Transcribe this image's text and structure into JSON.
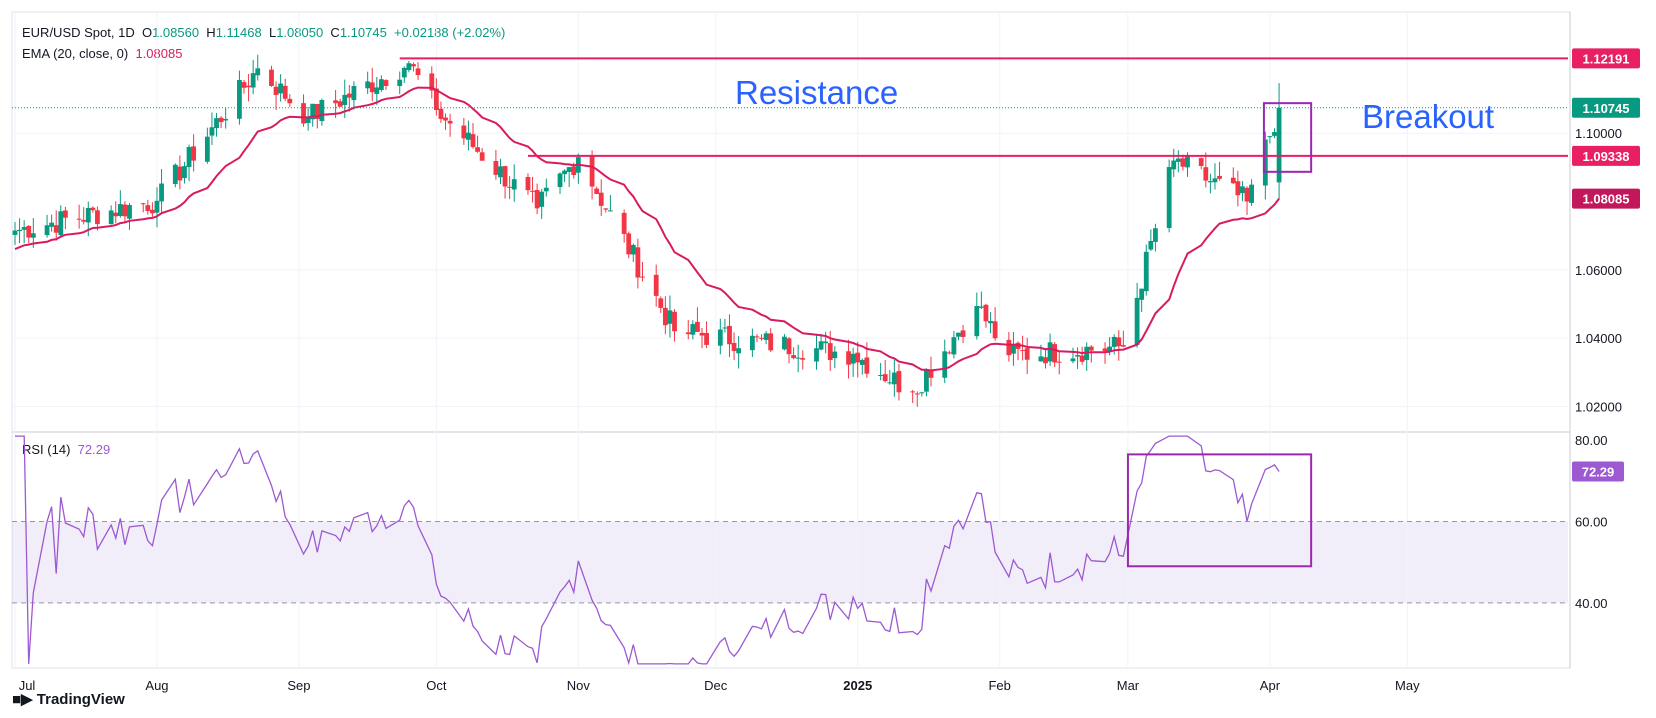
{
  "header": {
    "symbol": "EUR/USD Spot, 1D",
    "open_label": "O",
    "open": "1.08560",
    "high_label": "H",
    "high": "1.11468",
    "low_label": "L",
    "low": "1.08050",
    "close_label": "C",
    "close": "1.10745",
    "change": "+0.02188 (+2.02%)",
    "ema_label": "EMA (20, close, 0)",
    "ema_value": "1.08085",
    "rsi_label": "RSI (14)",
    "rsi_value": "72.29"
  },
  "branding": {
    "logo_text": "TradingView"
  },
  "colors": {
    "up": "#089981",
    "down": "#f23645",
    "ema": "#d81b60",
    "level_line": "#e91e63",
    "rsi": "#9c59d1",
    "box": "#9c27b0",
    "annotation": "#2962ff"
  },
  "chart_data": [
    {
      "type": "candlestick",
      "title": "EUR/USD Spot, 1D",
      "x_ticks": [
        "Jul",
        "Aug",
        "Sep",
        "Oct",
        "Nov",
        "Dec",
        "2025",
        "Feb",
        "Mar",
        "Apr",
        "May"
      ],
      "y_ticks": [
        1.02,
        1.04,
        1.06,
        1.1
      ],
      "ylim": [
        1.0125,
        1.1355
      ],
      "price_labels": [
        {
          "label": "1.12191",
          "value": 1.12191,
          "color": "#e91e63"
        },
        {
          "label": "1.10745",
          "value": 1.10745,
          "color": "#089981"
        },
        {
          "label": "1.09338",
          "value": 1.09338,
          "color": "#e91e63"
        },
        {
          "label": "1.08085",
          "value": 1.08085,
          "color": "#c2185b"
        }
      ],
      "horizontal_lines": [
        {
          "name": "Resistance",
          "value": 1.12191,
          "from": "2024-09-23"
        },
        {
          "name": "Breakout level",
          "value": 1.09338,
          "from": "2024-10-21"
        }
      ],
      "annotations": [
        "Resistance",
        "Breakout"
      ],
      "key_points": [
        {
          "date": "2024-07-01",
          "close": 1.0715
        },
        {
          "date": "2024-08-01",
          "close": 1.0802
        },
        {
          "date": "2024-08-23",
          "close": 1.119
        },
        {
          "date": "2024-09-03",
          "close": 1.1047
        },
        {
          "date": "2024-09-25",
          "close": 1.1205
        },
        {
          "date": "2024-10-01",
          "close": 1.1068
        },
        {
          "date": "2024-10-23",
          "close": 1.078
        },
        {
          "date": "2024-11-01",
          "close": 1.093
        },
        {
          "date": "2024-11-22",
          "close": 1.042
        },
        {
          "date": "2024-12-31",
          "close": 1.0354
        },
        {
          "date": "2025-01-13",
          "close": 1.0243
        },
        {
          "date": "2025-01-27",
          "close": 1.0494
        },
        {
          "date": "2025-02-03",
          "close": 1.035
        },
        {
          "date": "2025-02-28",
          "close": 1.0375
        },
        {
          "date": "2025-03-11",
          "close": 1.092
        },
        {
          "date": "2025-03-27",
          "close": 1.08
        },
        {
          "date": "2025-04-03",
          "close": 1.10745
        }
      ],
      "last_candle": {
        "open": 1.0856,
        "high": 1.11468,
        "low": 1.0805,
        "close": 1.10745
      },
      "series": [
        {
          "name": "EMA (20, close, 0)",
          "last": 1.08085
        }
      ]
    },
    {
      "type": "line",
      "title": "RSI (14)",
      "y_ticks": [
        40,
        60,
        80
      ],
      "ylim": [
        24,
        82
      ],
      "band": [
        40,
        60
      ],
      "last": 72.29
    }
  ]
}
